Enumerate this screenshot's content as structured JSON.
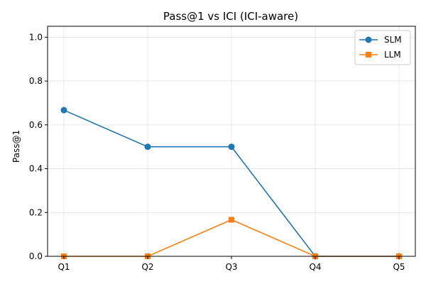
{
  "chart_data": {
    "type": "line",
    "title": "Pass@1 vs ICI (ICI-aware)",
    "xlabel": "",
    "ylabel": "Pass@1",
    "categories": [
      "Q1",
      "Q2",
      "Q3",
      "Q4",
      "Q5"
    ],
    "ylim": [
      0,
      1.05
    ],
    "yticks": [
      0.0,
      0.2,
      0.4,
      0.6,
      0.8,
      1.0
    ],
    "ytick_labels": [
      "0.0",
      "0.2",
      "0.4",
      "0.6",
      "0.8",
      "1.0"
    ],
    "grid": true,
    "legend_position": "top-right",
    "series": [
      {
        "name": "SLM",
        "values": [
          0.667,
          0.5,
          0.5,
          0.0,
          0.0
        ],
        "color": "#1f77b4",
        "marker": "circle"
      },
      {
        "name": "LLM",
        "values": [
          0.0,
          0.0,
          0.167,
          0.0,
          0.0
        ],
        "color": "#ff7f0e",
        "marker": "square"
      }
    ]
  }
}
